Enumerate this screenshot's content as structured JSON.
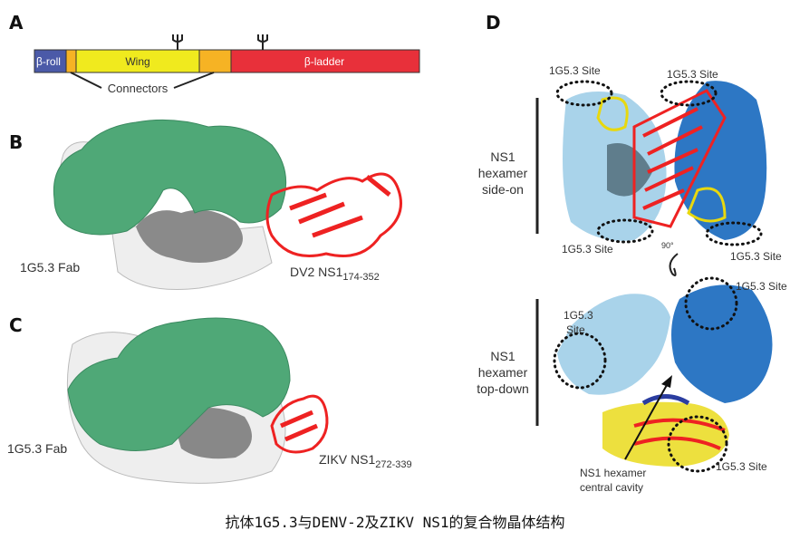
{
  "panels": {
    "a": {
      "letter": "A",
      "segments": [
        "β-roll",
        "Wing",
        "β-ladder"
      ],
      "connectors_label": "Connectors"
    },
    "b": {
      "letter": "B",
      "fab_label": "1G5.3 Fab",
      "ns1_label": "DV2 NS1",
      "ns1_sub": "174-352"
    },
    "c": {
      "letter": "C",
      "fab_label": "1G5.3 Fab",
      "ns1_label": "ZIKV NS1",
      "ns1_sub": "272-339"
    },
    "d": {
      "letter": "D",
      "side_on": {
        "title_lines": [
          "NS1",
          "hexamer",
          "side-on"
        ],
        "site_label": "1G5.3 Site"
      },
      "rotation_label": "90°",
      "top_down": {
        "title_lines": [
          "NS1",
          "hexamer",
          "top-down"
        ],
        "site_label": "1G5.3 Site",
        "site_label_lines": [
          "1G5.3",
          "Site"
        ],
        "cavity_lines": [
          "NS1 hexamer",
          "central cavity"
        ]
      }
    }
  },
  "colors": {
    "beta_roll": "#4b5aa8",
    "connector": "#f6b324",
    "wing": "#f0ea1e",
    "beta_ladder": "#e8303a",
    "fab": "#4fa877",
    "light_blue": "#a9d3ea",
    "dark_blue": "#2d77c4"
  },
  "caption": "抗体1G5.3与DENV-2及ZIKV NS1的复合物晶体结构"
}
